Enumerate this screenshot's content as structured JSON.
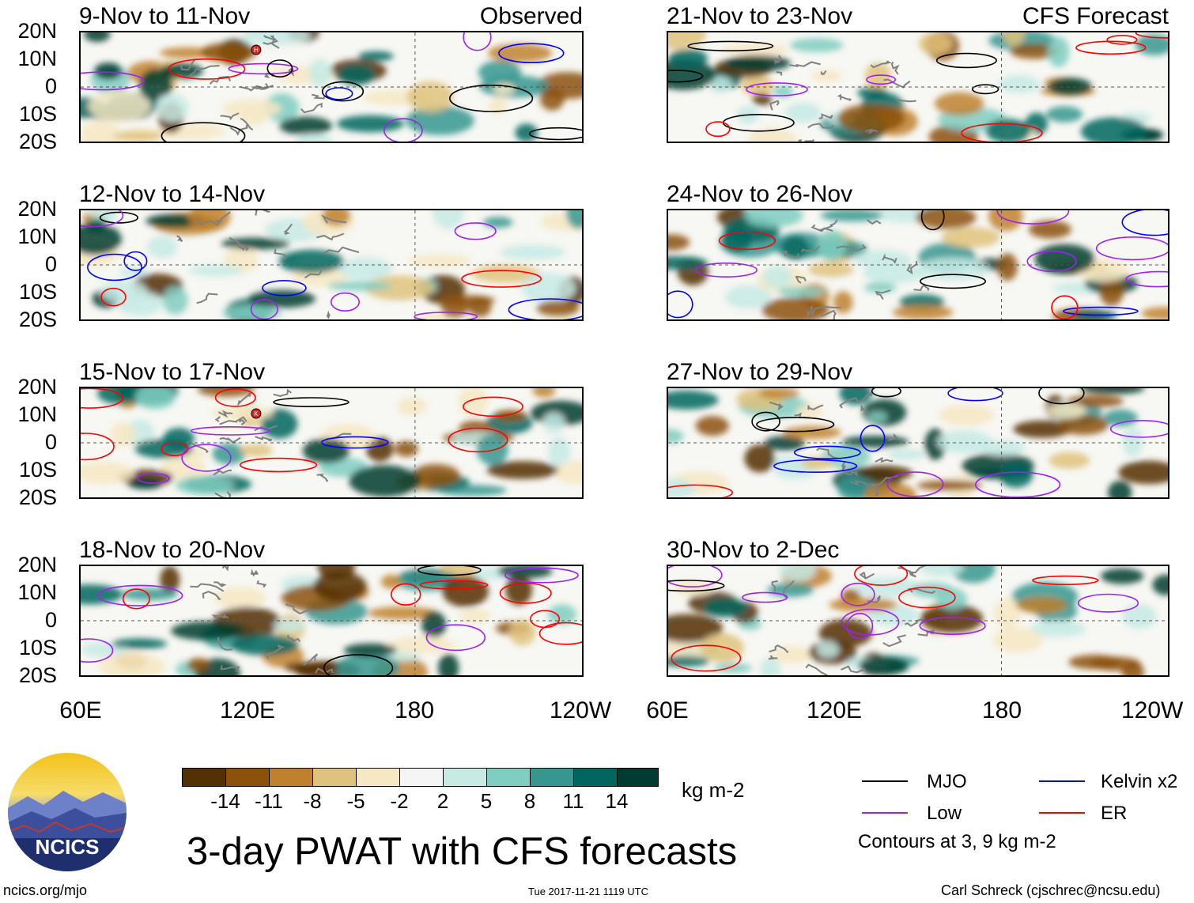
{
  "header": {
    "mode_observed": "Observed",
    "mode_forecast": "CFS Forecast"
  },
  "lat_labels": [
    "20N",
    "10N",
    "0",
    "10S",
    "20S"
  ],
  "lon_labels": [
    "60E",
    "120E",
    "180",
    "120W"
  ],
  "panels_left": [
    {
      "title": "9-Nov to 11-Nov"
    },
    {
      "title": "12-Nov to 14-Nov"
    },
    {
      "title": "15-Nov to 17-Nov"
    },
    {
      "title": "18-Nov to 20-Nov"
    }
  ],
  "panels_right": [
    {
      "title": "21-Nov to 23-Nov"
    },
    {
      "title": "24-Nov to 26-Nov"
    },
    {
      "title": "27-Nov to 29-Nov"
    },
    {
      "title": "30-Nov to 2-Dec"
    }
  ],
  "colorbar": {
    "colors": [
      "#543005",
      "#8c510a",
      "#bf812d",
      "#dfc27d",
      "#f6e8c3",
      "#f5f5f5",
      "#c7eae5",
      "#80cdc1",
      "#35978f",
      "#01665e",
      "#003c30"
    ],
    "ticks": [
      "-14",
      "-11",
      "-8",
      "-5",
      "-2",
      "2",
      "5",
      "8",
      "11",
      "14"
    ],
    "unit": "kg m-2"
  },
  "legend": {
    "mjo": {
      "label": "MJO",
      "color": "#000000"
    },
    "kelvin": {
      "label": "Kelvin x2",
      "color": "#0000ff"
    },
    "low": {
      "label": "Low",
      "color": "#a020f0"
    },
    "er": {
      "label": "ER",
      "color": "#ff0000"
    },
    "contours_note": "Contours at 3, 9 kg m-2"
  },
  "main_title": "3-day PWAT with CFS forecasts",
  "logo_text": "NCICS",
  "footer": {
    "website": "ncics.org/mjo",
    "timestamp": "Tue 2017-11-21 1119 UTC",
    "credit": "Carl Schreck (cjschrec@ncsu.edu)"
  },
  "storm_markers": [
    {
      "panel": "left-0",
      "letter": "H"
    },
    {
      "panel": "left-2",
      "letter": "K"
    }
  ]
}
